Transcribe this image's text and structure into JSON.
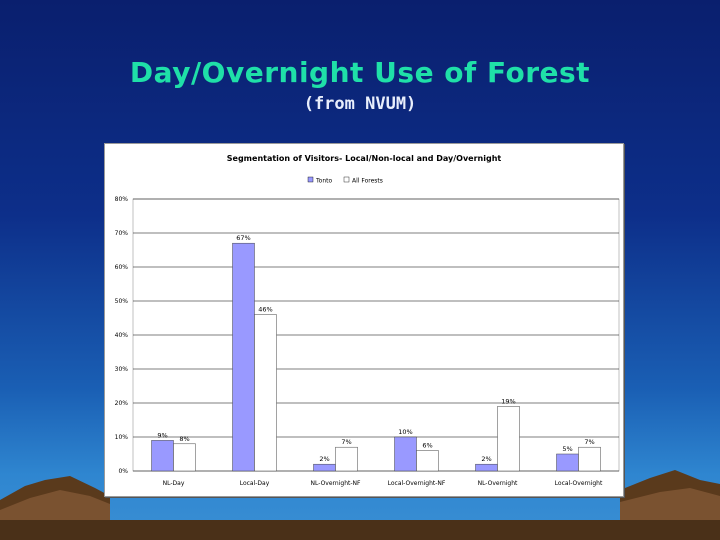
{
  "slide": {
    "title": "Day/Overnight Use of Forest",
    "subtitle": "(from NVUM)"
  },
  "colors": {
    "series1": "#9999ff",
    "series2": "#ffffff",
    "title": "#1fe0a8"
  },
  "chart_data": {
    "type": "bar",
    "title": "Segmentation of Visitors- Local/Non-local and Day/Overnight",
    "categories": [
      "NL-Day",
      "Local-Day",
      "NL-Overnight-NF",
      "Local-Overnight-NF",
      "NL-Overnight",
      "Local-Overnight"
    ],
    "series": [
      {
        "name": "Tonto",
        "values": [
          9,
          67,
          2,
          10,
          2,
          5
        ],
        "labels": [
          "9%",
          "67%",
          "2%",
          "10%",
          "2%",
          "5%"
        ]
      },
      {
        "name": "All Forests",
        "values": [
          8,
          46,
          7,
          6,
          19,
          7
        ],
        "labels": [
          "8%",
          "46%",
          "7%",
          "6%",
          "19%",
          "7%"
        ]
      }
    ],
    "yticks": [
      "0%",
      "10%",
      "20%",
      "30%",
      "40%",
      "50%",
      "60%",
      "70%",
      "80%"
    ],
    "ylim": [
      0,
      80
    ],
    "grid": true,
    "legend": "top-center"
  }
}
